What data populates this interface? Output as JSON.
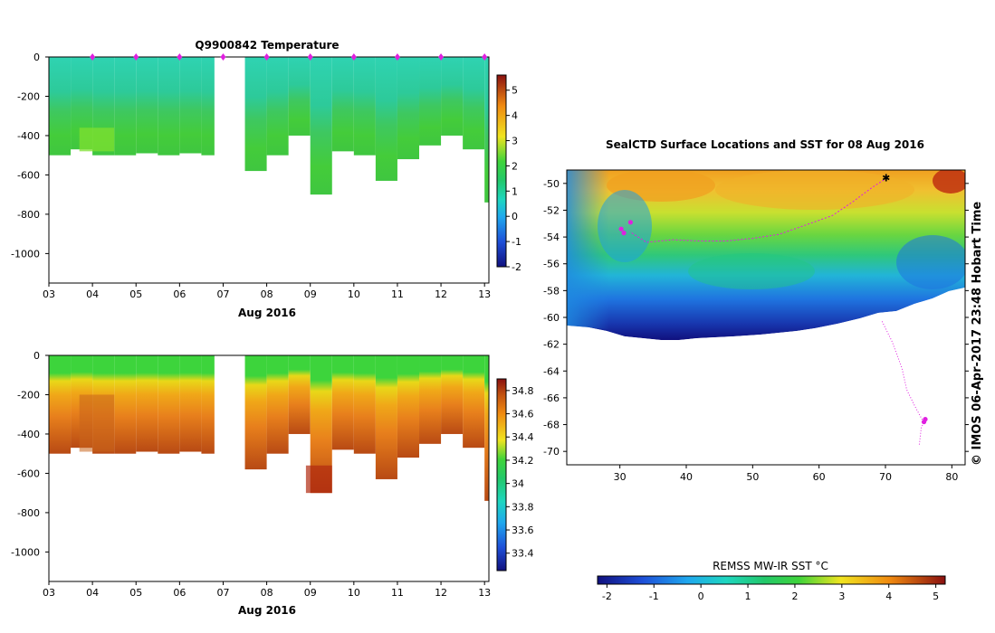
{
  "chart_data": [
    {
      "id": "temperature",
      "type": "heatmap",
      "title": "Q9900842  Temperature",
      "xlabel": "Aug 2016",
      "ylabel": "",
      "x_ticks": [
        "03",
        "04",
        "05",
        "06",
        "07",
        "08",
        "09",
        "10",
        "11",
        "12",
        "13"
      ],
      "y_ticks": [
        0,
        -200,
        -400,
        -600,
        -800,
        -1000
      ],
      "ylim": [
        -1150,
        0
      ],
      "colorbar": {
        "min": -2,
        "max": 5.6,
        "ticks": [
          -2,
          -1,
          0,
          1,
          2,
          3,
          4,
          5
        ],
        "colors": [
          "#10107e",
          "#1e4fd8",
          "#1fa8ee",
          "#1ed6c0",
          "#22c86a",
          "#3fd43a",
          "#f0e420",
          "#f08a10",
          "#8a1010"
        ]
      },
      "profile_markers": [
        4.0,
        5.0,
        6.0,
        7.0,
        8.0,
        9.0,
        10.0,
        11.0,
        12.0,
        13.0
      ],
      "profile_days": [
        3.0,
        3.5,
        4.0,
        4.5,
        5.0,
        5.5,
        6.0,
        6.5,
        7.5,
        8.0,
        8.5,
        9.0,
        9.5,
        10.0,
        10.5,
        11.0,
        11.5,
        12.0,
        12.5,
        13.0
      ],
      "profile_depths": [
        -500,
        -470,
        -500,
        -500,
        -490,
        -500,
        -490,
        -500,
        -580,
        -500,
        -400,
        -700,
        -480,
        -500,
        -630,
        -520,
        -450,
        -400,
        -470,
        -740
      ]
    },
    {
      "id": "salinity",
      "type": "heatmap",
      "title": "",
      "xlabel": "Aug 2016",
      "ylabel": "",
      "x_ticks": [
        "03",
        "04",
        "05",
        "06",
        "07",
        "08",
        "09",
        "10",
        "11",
        "12",
        "13"
      ],
      "y_ticks": [
        0,
        -200,
        -400,
        -600,
        -800,
        -1000
      ],
      "ylim": [
        -1150,
        0
      ],
      "colorbar": {
        "min": 33.25,
        "max": 34.9,
        "ticks": [
          "33.4",
          "33.6",
          "33.8",
          "34",
          "34.2",
          "34.4",
          "34.6",
          "34.8"
        ],
        "colors": [
          "#10107e",
          "#1e4fd8",
          "#1fa8ee",
          "#1ed6c0",
          "#22c86a",
          "#3fd43a",
          "#f0e420",
          "#f08a10",
          "#c05010",
          "#8a1010"
        ]
      },
      "profile_days": [
        3.0,
        3.5,
        4.0,
        4.5,
        5.0,
        5.5,
        6.0,
        6.5,
        7.5,
        8.0,
        8.5,
        9.0,
        9.5,
        10.0,
        10.5,
        11.0,
        11.5,
        12.0,
        12.5,
        13.0
      ],
      "profile_depths": [
        -500,
        -470,
        -500,
        -500,
        -490,
        -500,
        -490,
        -500,
        -580,
        -500,
        -400,
        -700,
        -480,
        -500,
        -630,
        -520,
        -450,
        -400,
        -470,
        -740
      ]
    },
    {
      "id": "map",
      "type": "heatmap",
      "title": "SealCTD Surface Locations and SST for 08 Aug 2016",
      "xlabel": "",
      "ylabel": "",
      "xlim": [
        22,
        82
      ],
      "ylim": [
        -71,
        -49
      ],
      "x_ticks": [
        30,
        40,
        50,
        60,
        70,
        80
      ],
      "y_ticks": [
        -50,
        -52,
        -54,
        -56,
        -58,
        -60,
        -62,
        -64,
        -66,
        -68,
        -70
      ],
      "side_label": "© IMOS 06-Apr-2017 23:48 Hobart Time",
      "colorbar": {
        "label": "REMSS MW-IR SST °C",
        "min": -2.2,
        "max": 5.2,
        "ticks": [
          "-2",
          "-1",
          "0",
          "1",
          "2",
          "3",
          "4",
          "5"
        ]
      },
      "track": [
        [
          70.2,
          -49.6
        ],
        [
          68,
          -50.3
        ],
        [
          65,
          -51.4
        ],
        [
          62,
          -52.4
        ],
        [
          58,
          -53.1
        ],
        [
          54,
          -53.8
        ],
        [
          50,
          -54.1
        ],
        [
          46,
          -54.3
        ],
        [
          42,
          -54.3
        ],
        [
          38,
          -54.2
        ],
        [
          34,
          -54.4
        ],
        [
          31.5,
          -53.6
        ]
      ],
      "track_south": [
        [
          69.5,
          -60.3
        ],
        [
          71,
          -61.8
        ],
        [
          72.5,
          -63.8
        ],
        [
          73.2,
          -65.4
        ],
        [
          74.4,
          -66.6
        ],
        [
          75.5,
          -67.6
        ],
        [
          76.2,
          -67.5
        ],
        [
          75.4,
          -68.2
        ],
        [
          75.1,
          -69.5
        ]
      ]
    }
  ]
}
